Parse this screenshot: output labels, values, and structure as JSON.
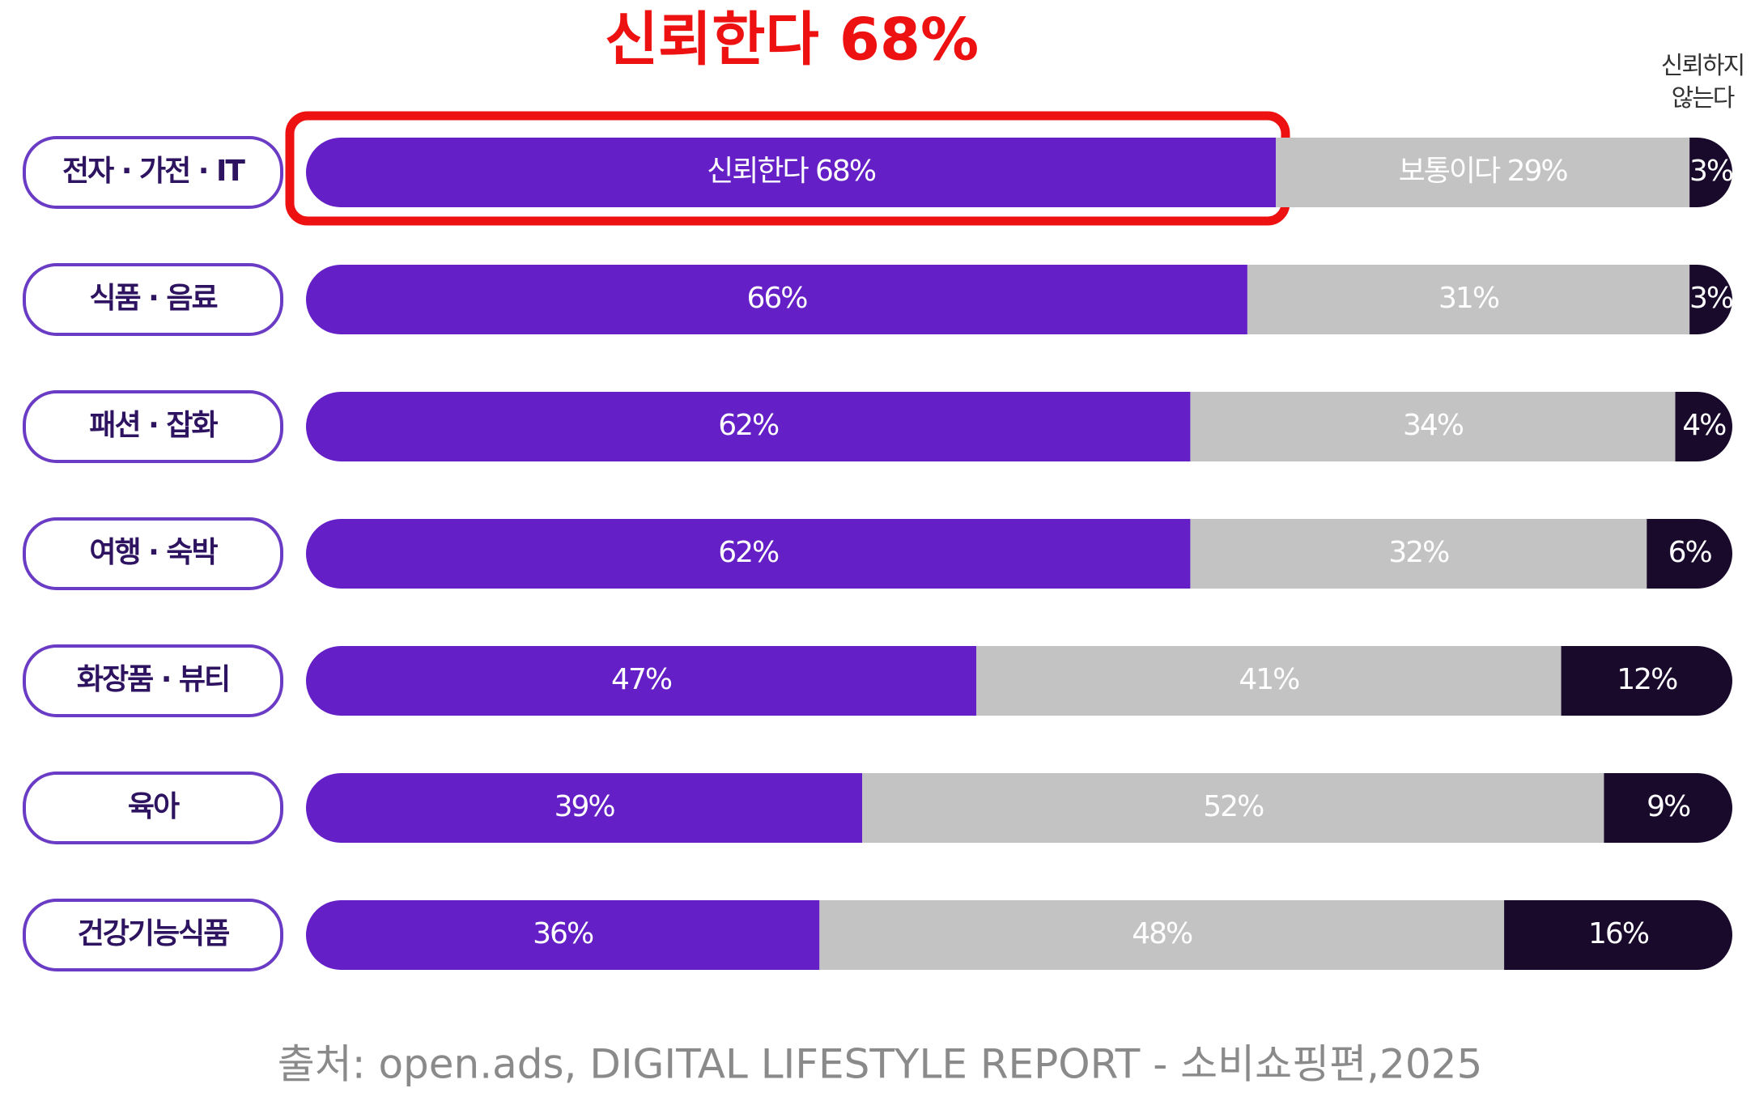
{
  "chart_data": {
    "type": "stacked-bar-horizontal",
    "title": "신뢰한다 68%",
    "source": "출처: open.ads,    DIGITAL LIFESTYLE REPORT - 소비쇼핑편,2025",
    "categories": [
      "전자 · 가전 · IT",
      "식품 · 음료",
      "패션 · 잡화",
      "여행 · 숙박",
      "화장품 · 뷰티",
      "육아",
      "건강기능식품"
    ],
    "xlim": [
      0,
      100
    ],
    "series": [
      {
        "color": "#6420c6",
        "values": [
          68,
          66,
          62,
          62,
          47,
          39,
          36
        ],
        "value_labels": [
          "신뢰한다 68%",
          "66%",
          "62%",
          "62%",
          "47%",
          "39%",
          "36%"
        ]
      },
      {
        "color": "#c3c3c3",
        "values": [
          29,
          31,
          34,
          32,
          41,
          52,
          48
        ],
        "value_labels": [
          "보통이다 29%",
          "31%",
          "34%",
          "32%",
          "41%",
          "52%",
          "48%"
        ]
      },
      {
        "name": "신뢰하지 않는다",
        "color": "#190a2c",
        "values": [
          3,
          3,
          4,
          6,
          12,
          9,
          16
        ],
        "value_labels": [
          "3%",
          "3%",
          "4%",
          "6%",
          "12%",
          "9%",
          "16%"
        ]
      }
    ]
  }
}
